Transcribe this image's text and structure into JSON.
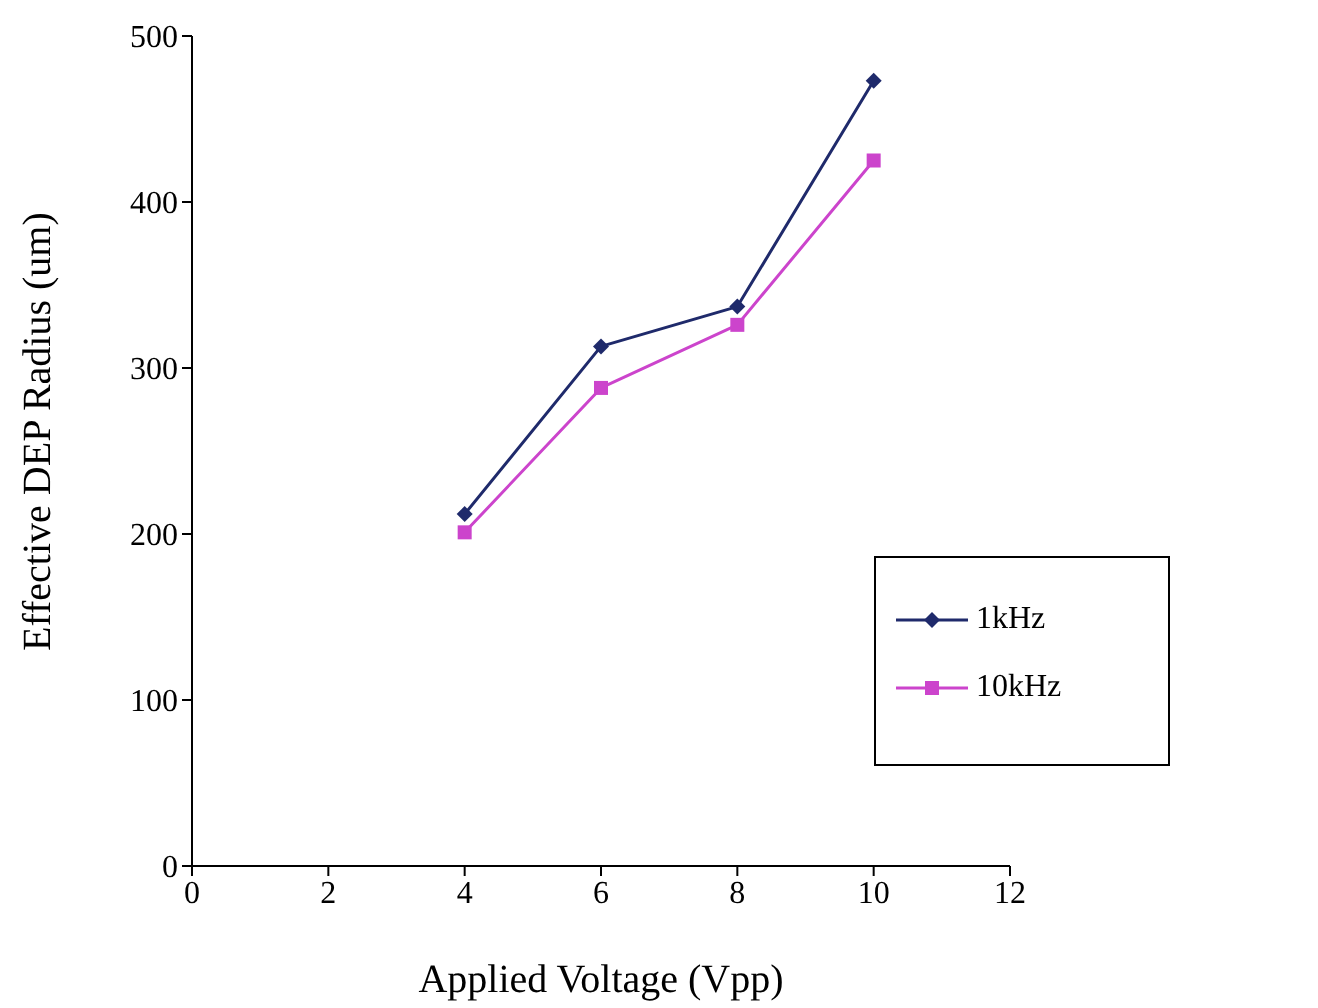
{
  "chart_data": {
    "type": "line",
    "xlabel": "Applied Voltage (Vpp)",
    "ylabel": "Effective DEP Radius (um)",
    "x": [
      4,
      6,
      8,
      10
    ],
    "series": [
      {
        "name": "1kHz",
        "color": "#1f2a6b",
        "values": [
          212,
          313,
          337,
          473
        ],
        "marker": "diamond"
      },
      {
        "name": "10kHz",
        "color": "#cc44cc",
        "values": [
          201,
          288,
          326,
          425
        ],
        "marker": "square"
      }
    ],
    "xlim": [
      0,
      12
    ],
    "xticks": [
      0,
      2,
      4,
      6,
      8,
      10,
      12
    ],
    "ylim": [
      0,
      500
    ],
    "yticks": [
      0,
      100,
      200,
      300,
      400,
      500
    ],
    "grid": false,
    "legend": "bottom right",
    "line_style": "solid"
  }
}
